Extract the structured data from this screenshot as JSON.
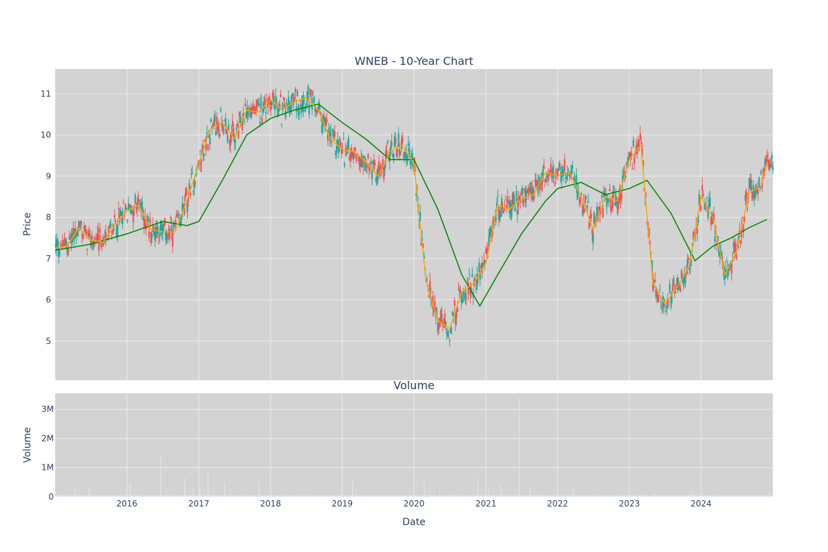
{
  "chart_data": [
    {
      "type": "candlestick",
      "title": "WNEB - 10-Year Chart",
      "ylabel": "Price",
      "ylim": [
        4.05,
        11.6
      ],
      "xlim": [
        "2015-01-01",
        "2024-12-31"
      ],
      "y_ticks": [
        "5",
        "6",
        "7",
        "8",
        "9",
        "10",
        "11"
      ],
      "grid": true,
      "colors": {
        "increasing": "#26a69a",
        "decreasing": "#ef5350",
        "ma_short": "#ffa500",
        "ma_long": "#008000",
        "plot_bg": "#d3d3d3",
        "grid": "#ececec"
      },
      "series": [
        {
          "type": "line",
          "color": "#ffa500",
          "x": [
            "2015-01",
            "2015-03",
            "2015-05",
            "2015-07",
            "2015-09",
            "2015-11",
            "2016-01",
            "2016-03",
            "2016-05",
            "2016-07",
            "2016-09",
            "2016-11",
            "2017-01",
            "2017-03",
            "2017-05",
            "2017-07",
            "2017-09",
            "2017-11",
            "2018-01",
            "2018-03",
            "2018-05",
            "2018-07",
            "2018-09",
            "2018-11",
            "2019-01",
            "2019-03",
            "2019-05",
            "2019-07",
            "2019-09",
            "2019-11",
            "2020-01",
            "2020-03",
            "2020-05",
            "2020-07",
            "2020-09",
            "2020-11",
            "2021-01",
            "2021-03",
            "2021-05",
            "2021-07",
            "2021-09",
            "2021-11",
            "2022-01",
            "2022-03",
            "2022-05",
            "2022-07",
            "2022-09",
            "2022-11",
            "2023-01",
            "2023-03",
            "2023-05",
            "2023-07",
            "2023-09",
            "2023-11",
            "2024-01",
            "2024-03",
            "2024-05",
            "2024-07",
            "2024-09",
            "2024-11",
            "2024-12"
          ],
          "y": [
            7.25,
            7.3,
            7.75,
            7.45,
            7.4,
            7.8,
            8.15,
            8.3,
            7.7,
            7.65,
            7.65,
            8.4,
            9.3,
            10.15,
            10.3,
            9.9,
            10.6,
            10.55,
            10.85,
            10.6,
            10.8,
            10.9,
            10.6,
            9.9,
            9.65,
            9.6,
            9.35,
            9.0,
            9.6,
            9.75,
            9.3,
            6.5,
            5.5,
            5.3,
            6.2,
            6.4,
            6.9,
            8.3,
            8.2,
            8.45,
            8.55,
            9.1,
            9.0,
            9.1,
            8.5,
            7.7,
            8.5,
            8.4,
            9.4,
            9.75,
            6.4,
            5.9,
            6.3,
            6.8,
            8.5,
            8.0,
            6.6,
            7.2,
            8.6,
            8.75,
            9.3
          ]
        },
        {
          "type": "line",
          "color": "#008000",
          "x": [
            "2015-01",
            "2015-07",
            "2016-01",
            "2016-07",
            "2016-11",
            "2017-01",
            "2017-05",
            "2017-09",
            "2018-01",
            "2018-05",
            "2018-09",
            "2019-01",
            "2019-05",
            "2019-09",
            "2020-01",
            "2020-05",
            "2020-09",
            "2020-12",
            "2021-03",
            "2021-07",
            "2021-11",
            "2022-01",
            "2022-05",
            "2022-09",
            "2023-01",
            "2023-04",
            "2023-08",
            "2023-12",
            "2024-03",
            "2024-06",
            "2024-09",
            "2024-12"
          ],
          "y": [
            7.2,
            7.35,
            7.6,
            7.9,
            7.8,
            7.9,
            8.9,
            10.0,
            10.4,
            10.6,
            10.75,
            10.3,
            9.9,
            9.4,
            9.4,
            8.2,
            6.6,
            5.85,
            6.6,
            7.6,
            8.4,
            8.7,
            8.85,
            8.55,
            8.7,
            8.9,
            8.1,
            6.95,
            7.3,
            7.5,
            7.75,
            7.95
          ]
        }
      ]
    },
    {
      "type": "bar",
      "title": "Volume",
      "xlabel": "Date",
      "ylabel": "Volume",
      "ylim": [
        0,
        3.55
      ],
      "y_ticks": [
        "0",
        "1M",
        "2M",
        "3M"
      ],
      "x_ticks": [
        "2016",
        "2017",
        "2018",
        "2019",
        "2020",
        "2021",
        "2022",
        "2023",
        "2024"
      ],
      "bar_color": "#e0e4f5",
      "spikes": {
        "x": [
          "2015-04-10",
          "2015-06-20",
          "2016-01-15",
          "2016-06-20",
          "2016-10-20",
          "2016-12-01",
          "2017-01-05",
          "2017-02-15",
          "2017-05-10",
          "2017-11-01",
          "2019-02-20",
          "2020-02-20",
          "2020-05-10",
          "2020-11-20",
          "2021-01-15",
          "2021-03-15",
          "2021-06-18",
          "2021-08-10",
          "2022-03-20",
          "2023-05-10",
          "2023-11-10",
          "2024-12-10"
        ],
        "values": [
          0.28,
          0.35,
          0.45,
          1.45,
          0.65,
          0.3,
          0.3,
          0.8,
          0.5,
          0.55,
          0.55,
          0.55,
          0.2,
          0.65,
          0.35,
          0.4,
          3.4,
          0.35,
          0.25,
          0.15,
          0.2,
          0.18
        ]
      }
    }
  ]
}
